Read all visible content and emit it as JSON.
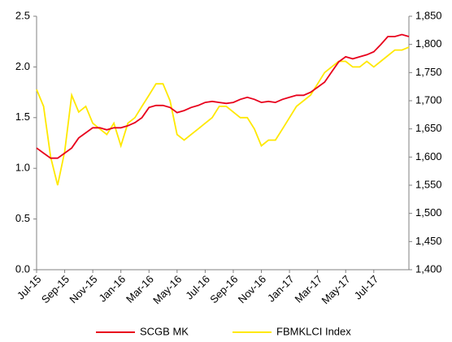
{
  "chart_data": {
    "type": "line",
    "categories": [
      "Jul-15",
      null,
      null,
      null,
      "Sep-15",
      null,
      null,
      null,
      "Nov-15",
      null,
      null,
      null,
      "Jan-16",
      null,
      null,
      null,
      "Mar-16",
      null,
      null,
      null,
      "May-16",
      null,
      null,
      null,
      "Jul-16",
      null,
      null,
      null,
      "Sep-16",
      null,
      null,
      null,
      "Nov-16",
      null,
      null,
      null,
      "Jan-17",
      null,
      null,
      null,
      "Mar-17",
      null,
      null,
      null,
      "May-17",
      null,
      null,
      null,
      "Jul-17",
      null,
      null,
      null,
      null,
      null
    ],
    "series": [
      {
        "name": "SCGB MK",
        "color": "#e8001c",
        "values": [
          1.2,
          1.15,
          1.1,
          1.1,
          1.15,
          1.2,
          1.3,
          1.35,
          1.4,
          1.4,
          1.38,
          1.4,
          1.4,
          1.42,
          1.45,
          1.5,
          1.6,
          1.62,
          1.62,
          1.6,
          1.55,
          1.57,
          1.6,
          1.62,
          1.65,
          1.66,
          1.65,
          1.64,
          1.65,
          1.68,
          1.7,
          1.68,
          1.65,
          1.66,
          1.65,
          1.68,
          1.7,
          1.72,
          1.72,
          1.75,
          1.8,
          1.85,
          1.95,
          2.05,
          2.1,
          2.08,
          2.1,
          2.12,
          2.15,
          2.22,
          2.3,
          2.3,
          2.32,
          2.3
        ]
      },
      {
        "name": "FBMKLCI Index",
        "color": "#ffe800",
        "axis": "y2",
        "values": [
          1720,
          1690,
          1600,
          1550,
          1610,
          1710,
          1680,
          1690,
          1660,
          1650,
          1640,
          1660,
          1620,
          1660,
          1670,
          1690,
          1710,
          1730,
          1730,
          1700,
          1640,
          1630,
          1640,
          1650,
          1660,
          1670,
          1690,
          1690,
          1680,
          1670,
          1670,
          1650,
          1620,
          1630,
          1630,
          1650,
          1670,
          1690,
          1700,
          1710,
          1730,
          1750,
          1760,
          1770,
          1770,
          1760,
          1760,
          1770,
          1760,
          1770,
          1780,
          1790,
          1790,
          1795
        ]
      }
    ],
    "ylim": [
      0,
      2.5
    ],
    "yticks": [
      {
        "value": 0,
        "label": "0.0"
      },
      0.5,
      {
        "value": 1,
        "label": "1.0"
      },
      1.5,
      {
        "value": 2,
        "label": "2.0"
      },
      2.5
    ],
    "y2lim": [
      1400,
      1850
    ],
    "y2ticks": [
      {
        "value": 1400,
        "label": "1,400"
      },
      {
        "value": 1450,
        "label": "1,450"
      },
      {
        "value": 1500,
        "label": "1,500"
      },
      {
        "value": 1550,
        "label": "1,550"
      },
      {
        "value": 1600,
        "label": "1,600"
      },
      {
        "value": 1650,
        "label": "1,650"
      },
      {
        "value": 1700,
        "label": "1,700"
      },
      {
        "value": 1750,
        "label": "1,750"
      },
      {
        "value": 1800,
        "label": "1,800"
      },
      {
        "value": 1850,
        "label": "1,850"
      }
    ],
    "legend": "bottom",
    "grid": false
  }
}
